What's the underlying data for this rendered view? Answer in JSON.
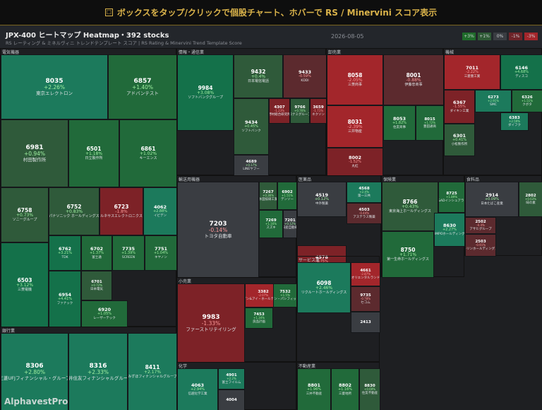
{
  "banner": {
    "icon": "☐",
    "text": "ボックスをタップ/クリックで個股チャート、ホバーで RS / Minervini スコア表示"
  },
  "header": {
    "title": "JPX-400 ヒートマップ Heatmap・392 stocks",
    "subtitle": "RS レーティング & ミネルヴィニ トレンドテンプレート スコア | RS Rating & Minervini Trend Template Score",
    "date": "2026-08-05"
  },
  "legend": [
    "+3%",
    "+1%",
    "0%",
    "-1%",
    "-3%"
  ],
  "watermark": "AlphavestPro",
  "colors": {
    "+3%": "#1f6b2a",
    "+1%": "#2e5a35",
    "0%": "#3a3d42",
    "-1%": "#6e2328",
    "-3%": "#a3262b"
  },
  "chart_data": {
    "type": "heatmap",
    "title": "JPX-400 ヒートマップ Heatmap・392 stocks",
    "color_scale": [
      "+3%",
      "+1%",
      "0%",
      "-1%",
      "-3%"
    ],
    "sectors": [
      {
        "name": "電気機器",
        "stocks": [
          {
            "code": "8035",
            "change": "+2.26%",
            "name": "東京エレクトロン"
          },
          {
            "code": "6857",
            "change": "+1.40%",
            "name": "アドバンテスト"
          },
          {
            "code": "6981",
            "change": "+0.94%",
            "name": "村田製作所"
          },
          {
            "code": "6501",
            "change": "+1.18%",
            "name": "日立製作所"
          },
          {
            "code": "6861",
            "change": "+1.02%",
            "name": "キーエンス"
          },
          {
            "code": "6758",
            "change": "+0.73%",
            "name": "ソニーグループ"
          },
          {
            "code": "6752",
            "change": "+0.83%",
            "name": "パナソニック ホールディングス"
          },
          {
            "code": "6723",
            "change": "-1.8%",
            "name": "ルネサスエレクトロニクス"
          },
          {
            "code": "4062",
            "change": "+2.88%",
            "name": "イビデン"
          },
          {
            "code": "6762",
            "change": "+3.21%",
            "name": "TDK"
          },
          {
            "code": "6702",
            "change": "+1.37%",
            "name": "富士通"
          },
          {
            "code": "7735",
            "change": "+1.39%",
            "name": "SCREEN"
          },
          {
            "code": "7751",
            "change": "+1.04%",
            "name": "キヤノン"
          },
          {
            "code": "6503",
            "change": "+3.12%",
            "name": "三菱電機"
          },
          {
            "code": "6954",
            "change": "+4.41%",
            "name": "ファナック"
          },
          {
            "code": "6701",
            "change": "+0.72%",
            "name": "日本電気"
          },
          {
            "code": "6920",
            "change": "+1.05%",
            "name": "レーザーテック"
          }
        ]
      },
      {
        "name": "情報・通信業",
        "stocks": [
          {
            "code": "9984",
            "change": "+3.08%",
            "name": "ソフトバンクグループ"
          },
          {
            "code": "9432",
            "change": "+0.4%",
            "name": "日本電信電話"
          },
          {
            "code": "9433",
            "change": "-0.59%",
            "name": "KDDI"
          },
          {
            "code": "9434",
            "change": "+0.45%",
            "name": "ソフトバンク"
          },
          {
            "code": "4689",
            "change": "+0.17%",
            "name": "LINEヤフー"
          },
          {
            "code": "4307",
            "change": "-1.23%",
            "name": "野村総合研究所"
          },
          {
            "code": "9766",
            "change": "+0.76%",
            "name": "コナミグループ"
          },
          {
            "code": "3659",
            "change": "-1.71%",
            "name": "ネクソン"
          }
        ]
      },
      {
        "name": "卸売業",
        "stocks": [
          {
            "code": "8058",
            "change": "-2.05%",
            "name": "三菱商事"
          },
          {
            "code": "8001",
            "change": "-0.88%",
            "name": "伊藤忠商事"
          },
          {
            "code": "8031",
            "change": "-2.39%",
            "name": "三井物産"
          },
          {
            "code": "8053",
            "change": "+1.82%",
            "name": "住友商事"
          },
          {
            "code": "8015",
            "change": "+1.72%",
            "name": "豊田通商"
          },
          {
            "code": "8002",
            "change": "-1.52%",
            "name": "丸紅"
          }
        ]
      },
      {
        "name": "機械",
        "stocks": [
          {
            "code": "7011",
            "change": "-2.22%",
            "name": "三菱重工業"
          },
          {
            "code": "6146",
            "change": "+4.68%",
            "name": "ディスコ"
          },
          {
            "code": "6367",
            "change": "-1.55%",
            "name": "ダイキン工業"
          },
          {
            "code": "6273",
            "change": "+2.91%",
            "name": "SMC"
          },
          {
            "code": "6326",
            "change": "+1.51%",
            "name": "クボタ"
          },
          {
            "code": "6383",
            "change": "+2.59%",
            "name": "ダイフク"
          },
          {
            "code": "6301",
            "change": "+0.41%",
            "name": "小松製作所"
          }
        ]
      },
      {
        "name": "輸送用機器",
        "stocks": [
          {
            "code": "7203",
            "change": "-0.14%",
            "name": "トヨタ自動車"
          },
          {
            "code": "7267",
            "change": "+0.36%",
            "name": "本田技研工業"
          },
          {
            "code": "6902",
            "change": "+1.51%",
            "name": "デンソー"
          },
          {
            "code": "7269",
            "change": "+1.16%",
            "name": "スズキ"
          },
          {
            "code": "7201",
            "change": "+0.12%",
            "name": "日産自動車"
          }
        ]
      },
      {
        "name": "医薬品",
        "stocks": [
          {
            "code": "4519",
            "change": "+0.12%",
            "name": "中外製薬"
          },
          {
            "code": "4568",
            "change": "+2.4%",
            "name": "第一三共"
          },
          {
            "code": "4503",
            "change": "-0.44%",
            "name": "アステラス製薬"
          },
          {
            "code": "4578",
            "change": "-1.75%",
            "name": "大塚ホールディングス"
          }
        ]
      },
      {
        "name": "保険業",
        "stocks": [
          {
            "code": "8766",
            "change": "+0.43%",
            "name": "東京海上ホールディングス"
          },
          {
            "code": "8725",
            "change": "+1.89%",
            "name": "MS&ADインシュアランス"
          },
          {
            "code": "8750",
            "change": "+1.71%",
            "name": "第一生命ホールディングス"
          },
          {
            "code": "8630",
            "change": "+2.27%",
            "name": "SOMPOホールディングス"
          }
        ]
      },
      {
        "name": "食料品",
        "stocks": [
          {
            "code": "2914",
            "change": "+0.09%",
            "name": "日本たばこ産業"
          },
          {
            "code": "2802",
            "change": "+0.63%",
            "name": "味の素"
          },
          {
            "code": "2502",
            "change": "-0.4%",
            "name": "アサヒグループ"
          },
          {
            "code": "2503",
            "change": "-0.91%",
            "name": "キリンホールディングス"
          }
        ]
      },
      {
        "name": "小売業",
        "stocks": [
          {
            "code": "9983",
            "change": "-1.33%",
            "name": "ファーストリテイリング"
          },
          {
            "code": "3382",
            "change": "-2.07%",
            "name": "セブン&アイ・ホールディングス"
          },
          {
            "code": "7453",
            "change": "+1.34%",
            "name": "良品計画"
          },
          {
            "code": "7532",
            "change": "+1.5%",
            "name": "パン・パシフィック"
          }
        ]
      },
      {
        "name": "サービス業",
        "stocks": [
          {
            "code": "6098",
            "change": "+2.46%",
            "name": "リクルートホールディングス"
          },
          {
            "code": "4661",
            "change": "-2.87%",
            "name": "オリエンタルランド"
          },
          {
            "code": "9735",
            "change": "-0.78%",
            "name": "セコム"
          },
          {
            "code": "2413",
            "change": "",
            "name": ""
          }
        ]
      },
      {
        "name": "銀行業",
        "stocks": [
          {
            "code": "8306",
            "change": "+2.80%",
            "name": "三菱UFJフィナンシャル・グループ"
          },
          {
            "code": "8316",
            "change": "+2.33%",
            "name": "三井住友フィナンシャルグループ"
          },
          {
            "code": "8411",
            "change": "+2.17%",
            "name": "みずほフィナンシャルグループ"
          }
        ]
      },
      {
        "name": "化学",
        "stocks": [
          {
            "code": "4063",
            "change": "+2.94%",
            "name": "信越化学工業"
          },
          {
            "code": "4901",
            "change": "+2.2%",
            "name": "富士フイルム"
          },
          {
            "code": "4004",
            "change": "",
            "name": ""
          }
        ]
      },
      {
        "name": "不動産業",
        "stocks": [
          {
            "code": "8801",
            "change": "+1.96%",
            "name": "三井不動産"
          },
          {
            "code": "8802",
            "change": "+1.16%",
            "name": "三菱地所"
          },
          {
            "code": "8830",
            "change": "+0.69%",
            "name": "住友不動産"
          }
        ]
      }
    ]
  }
}
